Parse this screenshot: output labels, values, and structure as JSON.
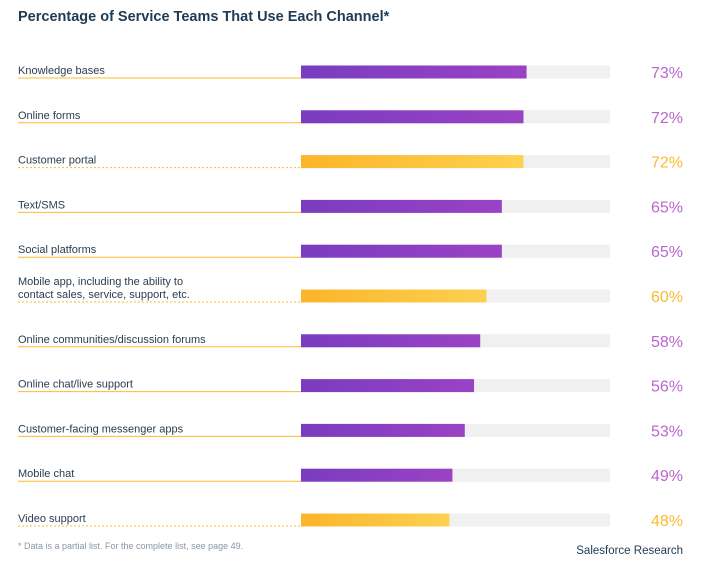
{
  "chart_data": {
    "type": "bar",
    "orientation": "horizontal",
    "title": "Percentage of Service Teams That Use Each Channel*",
    "categories": [
      [
        "Knowledge bases"
      ],
      [
        "Online forms"
      ],
      [
        "Customer portal"
      ],
      [
        "Text/SMS"
      ],
      [
        "Social platforms"
      ],
      [
        "Mobile app, including the ability to",
        "contact sales, service, support, etc."
      ],
      [
        "Online communities/discussion forums"
      ],
      [
        "Online chat/live support"
      ],
      [
        "Customer-facing messenger apps"
      ],
      [
        "Mobile chat"
      ],
      [
        "Video support"
      ]
    ],
    "values": [
      73,
      72,
      72,
      65,
      65,
      60,
      58,
      56,
      53,
      49,
      48
    ],
    "value_labels": [
      "73%",
      "72%",
      "72%",
      "65%",
      "65%",
      "60%",
      "58%",
      "56%",
      "53%",
      "49%",
      "48%"
    ],
    "highlighted": [
      false,
      false,
      true,
      false,
      false,
      true,
      false,
      false,
      false,
      false,
      true
    ],
    "xlim": [
      0,
      100
    ],
    "grid": false,
    "colors": {
      "bar": "#8a3fc1",
      "bar_highlight": "#f8bc2e",
      "track": "#f0f0f0",
      "value_text": "#b967cf",
      "value_text_highlight": "#f8bc2e",
      "label_text": "#2a3d4f",
      "line": "#f8bc2e"
    }
  },
  "footnote": "* Data is a partial list. For the complete list, see page 49.",
  "source": "Salesforce Research"
}
